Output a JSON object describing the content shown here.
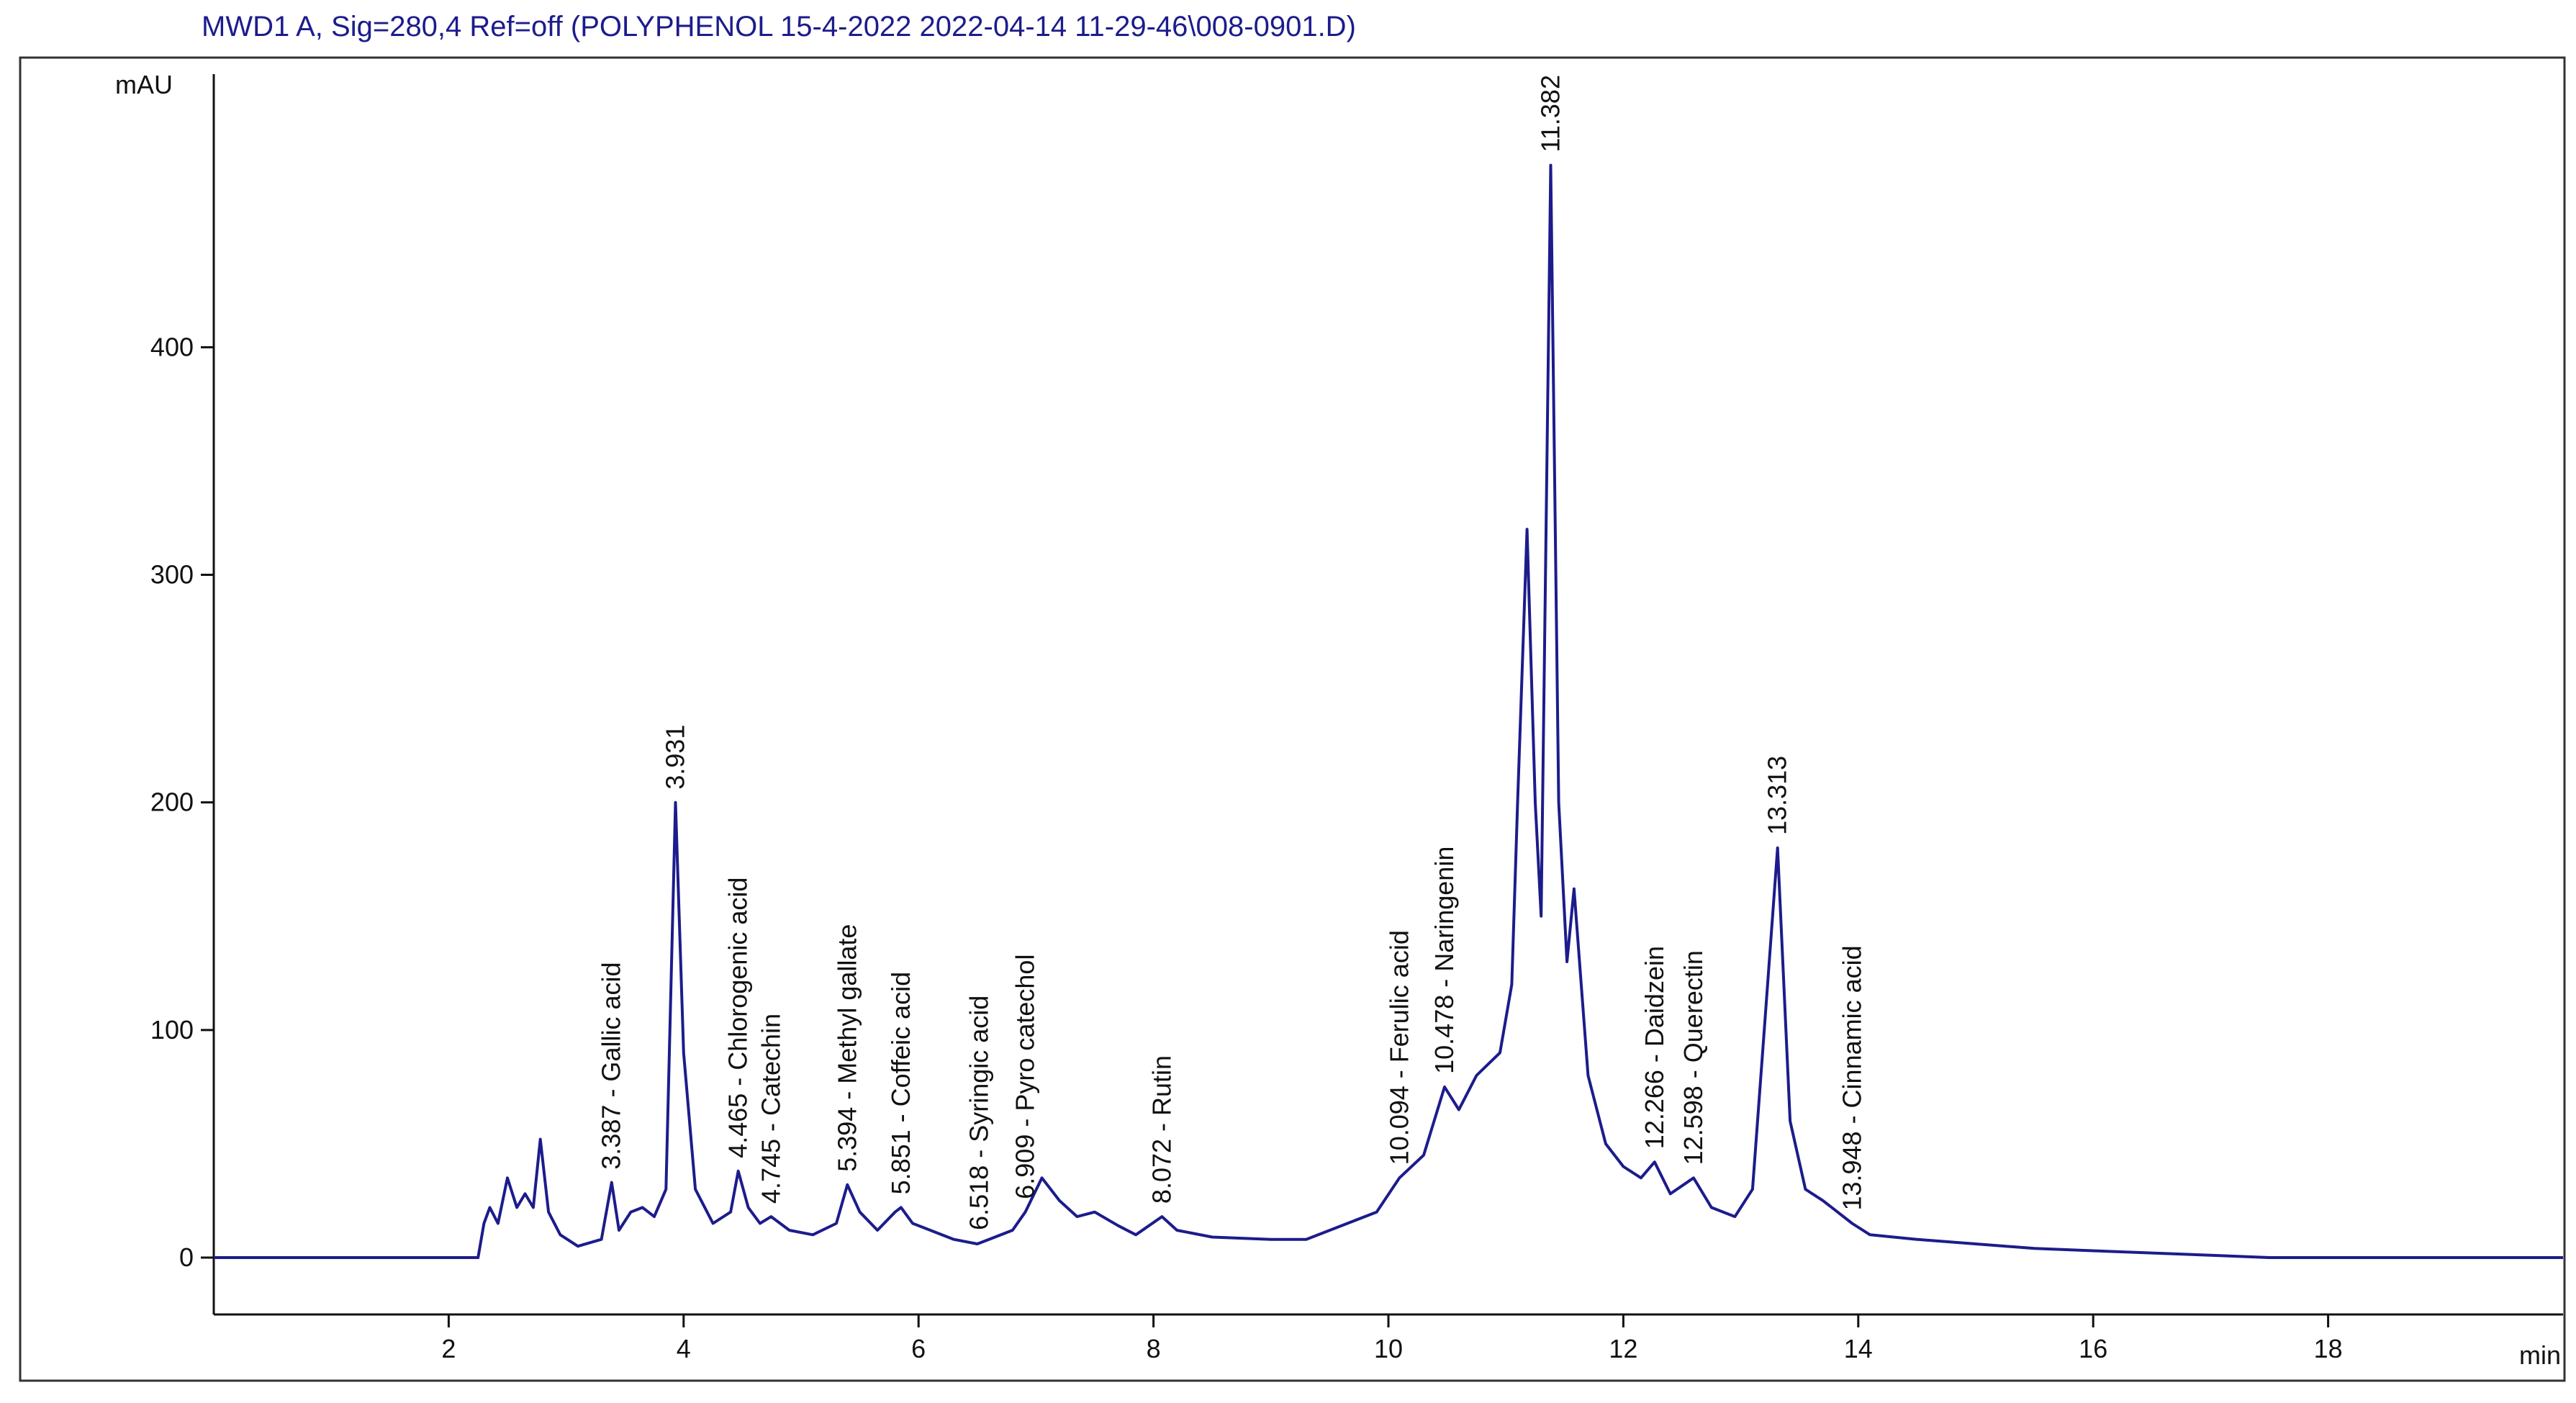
{
  "chart_data": {
    "type": "line",
    "title": "MWD1 A, Sig=280,4 Ref=off (POLYPHENOL 15-4-2022 2022-04-14 11-29-46\\008-0901.D)",
    "y_label": "mAU",
    "x_label": "min",
    "color": "#1c1c8c",
    "xlim": [
      0,
      20
    ],
    "ylim": [
      -25,
      520
    ],
    "xticks": [
      2,
      4,
      6,
      8,
      10,
      12,
      14,
      16,
      18
    ],
    "yticks": [
      0,
      100,
      200,
      300,
      400
    ],
    "x": [
      0,
      2.25,
      2.3,
      2.35,
      2.42,
      2.5,
      2.58,
      2.65,
      2.72,
      2.78,
      2.85,
      2.95,
      3.1,
      3.3,
      3.387,
      3.45,
      3.55,
      3.65,
      3.75,
      3.85,
      3.931,
      4.0,
      4.1,
      4.25,
      4.4,
      4.465,
      4.55,
      4.65,
      4.745,
      4.9,
      5.1,
      5.3,
      5.394,
      5.5,
      5.65,
      5.8,
      5.851,
      5.95,
      6.1,
      6.3,
      6.5,
      6.6,
      6.8,
      6.909,
      7.05,
      7.2,
      7.35,
      7.5,
      7.7,
      7.85,
      8.072,
      8.2,
      8.5,
      9.0,
      9.3,
      9.6,
      9.9,
      10.094,
      10.3,
      10.478,
      10.6,
      10.75,
      10.85,
      10.95,
      11.05,
      11.1,
      11.18,
      11.25,
      11.3,
      11.382,
      11.45,
      11.52,
      11.58,
      11.7,
      11.85,
      12.0,
      12.15,
      12.266,
      12.4,
      12.598,
      12.75,
      12.95,
      13.1,
      13.2,
      13.313,
      13.42,
      13.55,
      13.7,
      13.948,
      14.1,
      14.5,
      15,
      15.5,
      16,
      17,
      17.5,
      20
    ],
    "values": [
      0,
      0,
      15,
      22,
      15,
      35,
      22,
      28,
      22,
      52,
      20,
      10,
      5,
      8,
      33,
      12,
      20,
      22,
      18,
      30,
      200,
      90,
      30,
      15,
      20,
      38,
      22,
      15,
      18,
      12,
      10,
      15,
      32,
      20,
      12,
      20,
      22,
      15,
      12,
      8,
      6,
      8,
      12,
      20,
      35,
      25,
      18,
      20,
      14,
      10,
      18,
      12,
      9,
      8,
      8,
      14,
      20,
      35,
      45,
      75,
      65,
      80,
      85,
      90,
      120,
      200,
      320,
      200,
      150,
      480,
      200,
      130,
      162,
      80,
      50,
      40,
      35,
      42,
      28,
      35,
      22,
      18,
      30,
      100,
      180,
      60,
      30,
      25,
      15,
      10,
      8,
      6,
      4,
      3,
      1,
      0,
      0
    ],
    "annotations": [
      {
        "x": 3.387,
        "text": "3.387 - Gallic acid"
      },
      {
        "x": 3.931,
        "text": "3.931"
      },
      {
        "x": 4.465,
        "text": "4.465 - Chlorogenic acid"
      },
      {
        "x": 4.745,
        "text": "4.745 - Catechin"
      },
      {
        "x": 5.394,
        "text": "5.394 - Methyl gallate"
      },
      {
        "x": 5.851,
        "text": "5.851 - Coffeic acid"
      },
      {
        "x": 6.518,
        "text": "6.518 - Syringic acid"
      },
      {
        "x": 6.909,
        "text": "6.909 - Pyro catechol"
      },
      {
        "x": 8.072,
        "text": "8.072 - Rutin"
      },
      {
        "x": 10.094,
        "text": "10.094 - Ferulic acid"
      },
      {
        "x": 10.478,
        "text": "10.478 - Naringenin"
      },
      {
        "x": 11.382,
        "text": "11.382"
      },
      {
        "x": 12.266,
        "text": "12.266 - Daidzein"
      },
      {
        "x": 12.598,
        "text": "12.598 - Querectin"
      },
      {
        "x": 13.313,
        "text": "13.313"
      },
      {
        "x": 13.948,
        "text": "13.948 - Cinnamic acid"
      }
    ]
  }
}
